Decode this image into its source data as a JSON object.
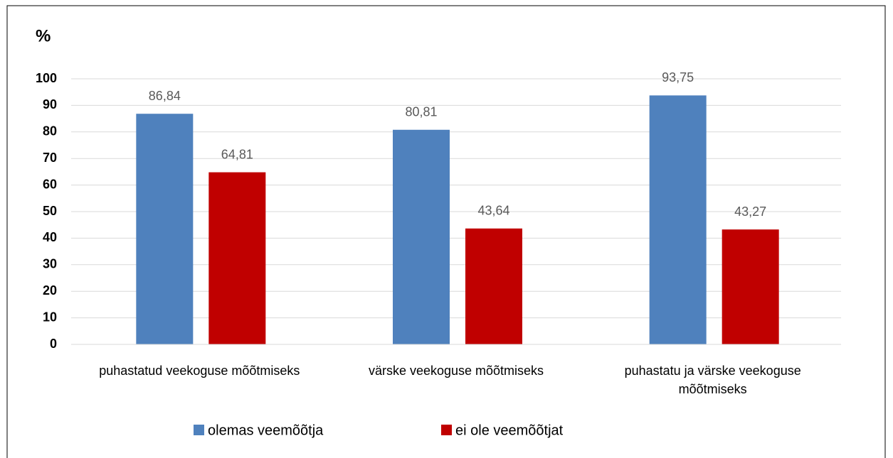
{
  "chart_data": {
    "type": "bar",
    "y_axis_label": "%",
    "categories": [
      "puhastatud veekoguse mõõtmiseks",
      "värske veekoguse mõõtmiseks",
      "puhastatu ja värske veekoguse mõõtmiseks"
    ],
    "series": [
      {
        "name": "olemas veemõõtja",
        "color": "#4f81bd",
        "values": [
          86.84,
          80.81,
          93.75
        ],
        "value_labels": [
          "86,84",
          "80,81",
          "93,75"
        ]
      },
      {
        "name": "ei ole veemõõtjat",
        "color": "#c00000",
        "values": [
          64.81,
          43.64,
          43.27
        ],
        "value_labels": [
          "64,81",
          "43,64",
          "43,27"
        ]
      }
    ],
    "ylim": [
      0,
      100
    ],
    "yticks": [
      0,
      10,
      20,
      30,
      40,
      50,
      60,
      70,
      80,
      90,
      100
    ],
    "grid": true,
    "legend": "bottom"
  }
}
